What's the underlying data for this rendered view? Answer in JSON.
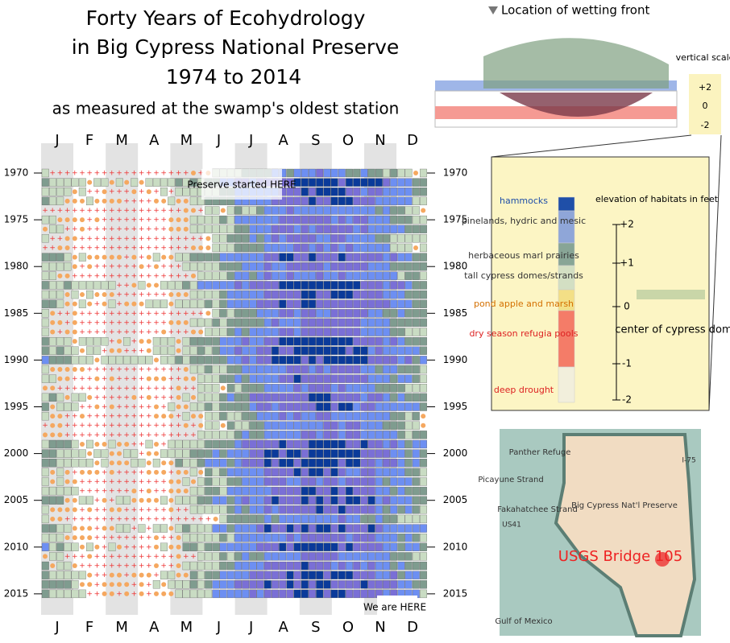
{
  "title": {
    "lines": [
      "Forty Years of Ecohydrology",
      "in Big Cypress National Preserve",
      "1974 to 2014"
    ],
    "subtitle": "as measured at the swamp's oldest station"
  },
  "heatmap": {
    "months": [
      "J",
      "F",
      "M",
      "A",
      "M",
      "J",
      "J",
      "A",
      "S",
      "O",
      "N",
      "D"
    ],
    "years": [
      "1970",
      "1975",
      "1980",
      "1985",
      "1990",
      "1995",
      "2000",
      "2005",
      "2010",
      "2015"
    ],
    "annotations": [
      "Preserve started HERE",
      "We are HERE"
    ]
  },
  "schematic": {
    "wetting_front": "Location of wetting front",
    "vertical_scale": "vertical scale",
    "scale_ticks": [
      "+2",
      "0",
      "-2"
    ]
  },
  "legend": {
    "title": "elevation of habitats in feet",
    "items": [
      {
        "label": "hammocks",
        "color": "#1f4fa8"
      },
      {
        "label": "pinelands, hydric and mesic",
        "color": "#8fa6d8"
      },
      {
        "label": "herbaceous marl prairies",
        "color": "#88a596"
      },
      {
        "label": "tall cypress domes/strands",
        "color": "#d3dfc3"
      },
      {
        "label": "pond apple and marsh",
        "color": "#f3df86"
      },
      {
        "label": "dry season refugia pools",
        "color": "#f47c68"
      },
      {
        "label": "deep drought",
        "color": "#f2efdc"
      }
    ],
    "ticks": [
      "+2",
      "+1",
      "0",
      "-1",
      "-2"
    ],
    "center_label": "center of cypress dome"
  },
  "map": {
    "labels": [
      "Panther Refuge",
      "I-75",
      "Picayune Strand",
      "Big Cypress Nat'l Preserve",
      "Fakahatchee Strand",
      "US41",
      "Gulf of Mexico",
      "USGS Bridge 105"
    ]
  }
}
